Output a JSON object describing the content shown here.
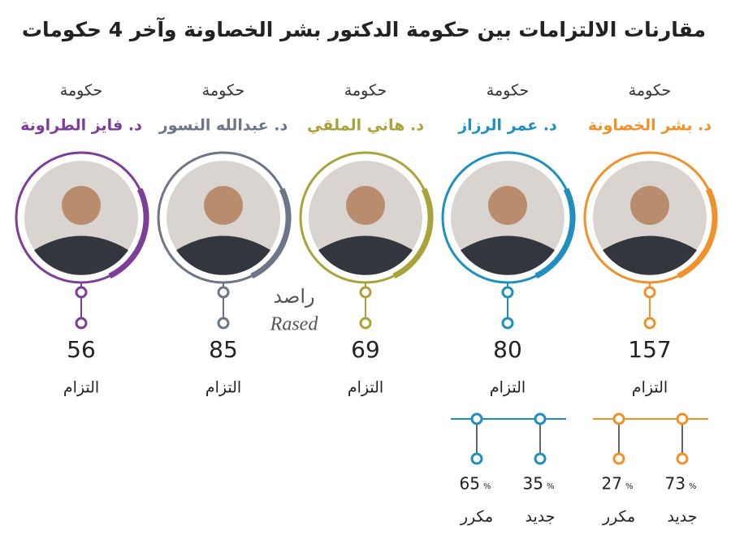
{
  "title": "مقارنات الالتزامات بين حكومة الدكتور بشر الخصاونة وآخر 4 حكومات",
  "governments": [
    {
      "label": "حكومة",
      "name": "د. بشر الخصاونة",
      "commitments": 157,
      "unit": "التزام",
      "color": "#f0922b",
      "breakdown": [
        {
          "label": "جديد",
          "percent": 73,
          "unit": "%"
        },
        {
          "label": "مكرر",
          "percent": 27,
          "unit": "%"
        }
      ]
    },
    {
      "label": "حكومة",
      "name": "د. عمر الرزاز",
      "commitments": 80,
      "unit": "التزام",
      "color": "#1f8fc0",
      "breakdown": [
        {
          "label": "جديد",
          "percent": 35,
          "unit": "%"
        },
        {
          "label": "مكرر",
          "percent": 65,
          "unit": "%"
        }
      ]
    },
    {
      "label": "حكومة",
      "name": "د. هاني الملقي",
      "commitments": 69,
      "unit": "التزام",
      "color": "#a8a33a",
      "breakdown": []
    },
    {
      "label": "حكومة",
      "name": "د. عبدالله النسور",
      "commitments": 85,
      "unit": "التزام",
      "color": "#6e7587",
      "breakdown": []
    },
    {
      "label": "حكومة",
      "name": "د. فايز الطراونة",
      "commitments": 56,
      "unit": "التزام",
      "color": "#7b3f98",
      "breakdown": []
    }
  ],
  "watermark": {
    "arabic": "راصد",
    "latin": "Rased"
  }
}
